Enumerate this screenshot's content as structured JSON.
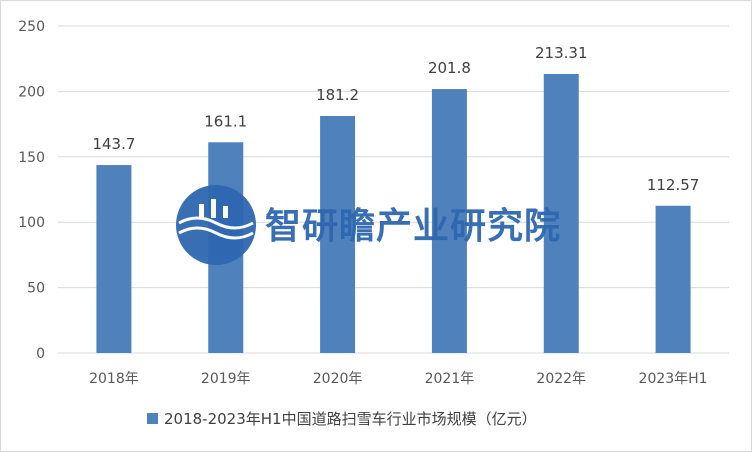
{
  "chart_data": {
    "type": "bar",
    "categories": [
      "2018年",
      "2019年",
      "2020年",
      "2021年",
      "2022年",
      "2023年H1"
    ],
    "series": [
      {
        "name": "2018-2023年H1中国道路扫雪车行业市场规模（亿元）",
        "values": [
          143.7,
          161.1,
          181.2,
          201.8,
          213.31,
          112.57
        ],
        "labels": [
          "143.7",
          "161.1",
          "181.2",
          "201.8",
          "213.31",
          "112.57"
        ],
        "color": "#4f81bd"
      }
    ],
    "y_ticks": [
      "0",
      "50",
      "100",
      "150",
      "200",
      "250"
    ],
    "ylim": [
      0,
      250
    ],
    "grid": true,
    "legend_position": "bottom",
    "title": "",
    "xlabel": "",
    "ylabel": ""
  },
  "watermark": {
    "text": "智研瞻产业研究院",
    "color": "#2e67b0",
    "icon": "logo-circle-icon"
  }
}
